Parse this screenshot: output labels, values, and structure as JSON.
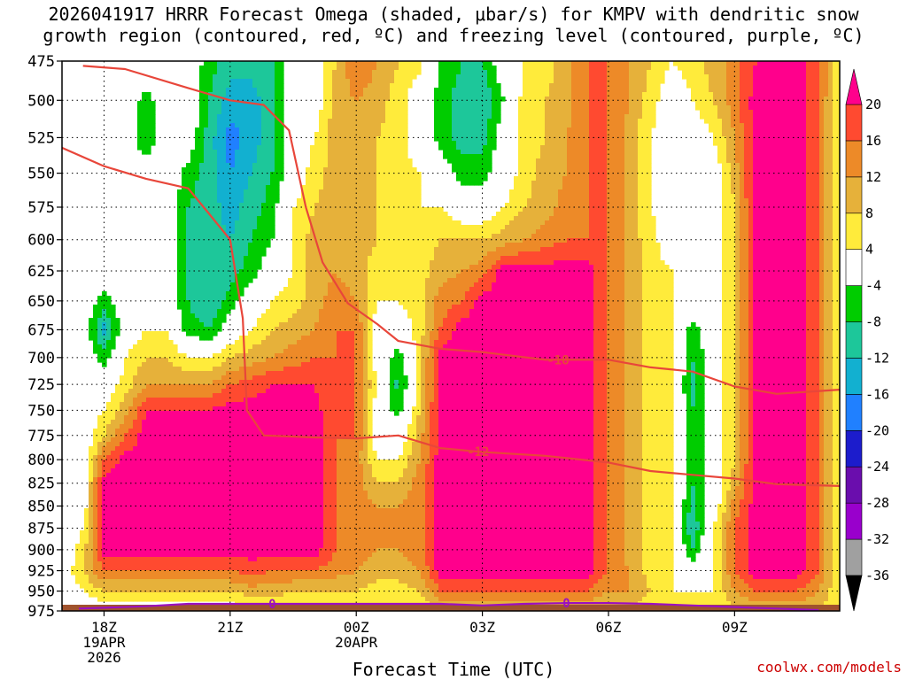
{
  "title_line1": "2026041917 HRRR Forecast Omega (shaded, μbar/s) for KMPV with dendritic snow",
  "title_line2": "growth region (contoured, red, ºC) and freezing level (contoured, purple, ºC)",
  "credit": "coolwx.com/models",
  "chart_data": {
    "type": "heatmap",
    "title": "2026041917 HRRR Forecast Omega (shaded, μbar/s) for KMPV with dendritic snow growth region (contoured, red, ºC) and freezing level (contoured, purple, ºC)",
    "xlabel": "Forecast Time (UTC)",
    "ylabel": "",
    "x_hours_range": [
      17,
      35.5
    ],
    "y_pressure_range": [
      975,
      475
    ],
    "y_ticks": [
      475,
      500,
      525,
      550,
      575,
      600,
      625,
      650,
      675,
      700,
      725,
      750,
      775,
      800,
      825,
      850,
      875,
      900,
      925,
      950,
      975
    ],
    "x_ticks": [
      {
        "hour": 18,
        "lines": [
          "18Z",
          "19APR",
          "2026"
        ]
      },
      {
        "hour": 21,
        "lines": [
          "21Z"
        ]
      },
      {
        "hour": 24,
        "lines": [
          "00Z",
          "20APR"
        ]
      },
      {
        "hour": 27,
        "lines": [
          "03Z"
        ]
      },
      {
        "hour": 30,
        "lines": [
          "06Z"
        ]
      },
      {
        "hour": 33,
        "lines": [
          "09Z"
        ]
      }
    ],
    "grid": true,
    "colorbar": {
      "levels": [
        -36,
        -32,
        -28,
        -24,
        -20,
        -16,
        -12,
        -8,
        -4,
        4,
        8,
        12,
        16,
        20
      ],
      "colors": [
        "#000000",
        "#a0a0a0",
        "#9900cc",
        "#6a0dad",
        "#1c1ccc",
        "#2080ff",
        "#12b0d0",
        "#1dc79a",
        "#00cc00",
        "#ffffff",
        "#ffeb3b",
        "#e6b13a",
        "#ed8a28",
        "#ff4a30",
        "#ff008c",
        "#ff008c"
      ]
    },
    "omega_columns": [
      {
        "hour": 17.0,
        "values": [
          0,
          0,
          0,
          0,
          0,
          0,
          0,
          0,
          0,
          0,
          0,
          0,
          0,
          0,
          0,
          0,
          0,
          0,
          0,
          0,
          0
        ]
      },
      {
        "hour": 17.5,
        "values": [
          0,
          0,
          0,
          0,
          0,
          0,
          0,
          0,
          0,
          0,
          0,
          0,
          0,
          0,
          0,
          0,
          4,
          6,
          8,
          4,
          0
        ]
      },
      {
        "hour": 18.0,
        "values": [
          4,
          0,
          0,
          0,
          0,
          0,
          0,
          -6,
          -14,
          -6,
          0,
          4,
          8,
          16,
          22,
          22,
          22,
          22,
          16,
          8,
          0
        ]
      },
      {
        "hour": 18.5,
        "values": [
          0,
          0,
          0,
          0,
          0,
          0,
          0,
          0,
          0,
          4,
          6,
          10,
          16,
          22,
          22,
          22,
          22,
          22,
          16,
          8,
          0
        ]
      },
      {
        "hour": 19.0,
        "values": [
          0,
          -6,
          -8,
          0,
          0,
          0,
          0,
          0,
          4,
          8,
          12,
          20,
          22,
          22,
          22,
          22,
          22,
          22,
          16,
          8,
          0
        ]
      },
      {
        "hour": 19.5,
        "values": [
          0,
          0,
          0,
          0,
          0,
          0,
          0,
          0,
          4,
          8,
          12,
          20,
          22,
          22,
          22,
          22,
          22,
          22,
          16,
          8,
          0
        ]
      },
      {
        "hour": 20.0,
        "values": [
          0,
          0,
          0,
          -6,
          -8,
          -8,
          -8,
          -8,
          -6,
          4,
          12,
          20,
          22,
          22,
          22,
          22,
          22,
          22,
          16,
          8,
          0
        ]
      },
      {
        "hour": 20.5,
        "values": [
          -6,
          -8,
          -10,
          -10,
          -10,
          -10,
          -12,
          -12,
          -8,
          4,
          12,
          20,
          22,
          22,
          22,
          22,
          22,
          22,
          16,
          8,
          0
        ]
      },
      {
        "hour": 21.0,
        "values": [
          -10,
          -14,
          -18,
          -16,
          -14,
          -12,
          -10,
          -6,
          0,
          8,
          16,
          22,
          22,
          22,
          22,
          22,
          22,
          22,
          16,
          8,
          0
        ]
      },
      {
        "hour": 21.5,
        "values": [
          -10,
          -14,
          -14,
          -12,
          -10,
          -8,
          -6,
          0,
          4,
          10,
          18,
          22,
          22,
          22,
          22,
          22,
          22,
          22,
          18,
          10,
          4
        ]
      },
      {
        "hour": 22.0,
        "values": [
          -8,
          -10,
          -10,
          -8,
          -6,
          -4,
          0,
          4,
          8,
          12,
          20,
          22,
          22,
          22,
          22,
          22,
          22,
          22,
          16,
          10,
          4
        ]
      },
      {
        "hour": 22.5,
        "values": [
          0,
          0,
          0,
          0,
          4,
          4,
          4,
          6,
          10,
          14,
          20,
          22,
          22,
          22,
          22,
          22,
          22,
          22,
          16,
          8,
          4
        ]
      },
      {
        "hour": 23.0,
        "values": [
          0,
          0,
          4,
          6,
          8,
          10,
          10,
          10,
          12,
          16,
          20,
          22,
          22,
          22,
          22,
          22,
          22,
          22,
          16,
          8,
          4
        ]
      },
      {
        "hour": 23.5,
        "values": [
          8,
          10,
          10,
          10,
          10,
          10,
          12,
          14,
          16,
          16,
          16,
          16,
          16,
          16,
          16,
          16,
          16,
          16,
          14,
          8,
          4
        ]
      },
      {
        "hour": 24.0,
        "values": [
          16,
          12,
          12,
          10,
          10,
          10,
          10,
          12,
          16,
          16,
          16,
          16,
          16,
          14,
          14,
          14,
          14,
          14,
          12,
          8,
          4
        ]
      },
      {
        "hour": 24.5,
        "values": [
          12,
          10,
          8,
          8,
          8,
          8,
          6,
          4,
          0,
          0,
          4,
          0,
          0,
          4,
          8,
          12,
          12,
          12,
          10,
          6,
          4
        ]
      },
      {
        "hour": 25.0,
        "values": [
          8,
          6,
          6,
          6,
          6,
          6,
          4,
          4,
          0,
          -6,
          -10,
          -6,
          0,
          4,
          8,
          12,
          12,
          12,
          10,
          6,
          4
        ]
      },
      {
        "hour": 25.5,
        "values": [
          6,
          0,
          0,
          4,
          4,
          6,
          6,
          6,
          6,
          6,
          6,
          8,
          10,
          12,
          14,
          14,
          14,
          14,
          12,
          8,
          4
        ]
      },
      {
        "hour": 26.0,
        "values": [
          -4,
          -6,
          -6,
          0,
          4,
          8,
          10,
          14,
          16,
          22,
          22,
          22,
          22,
          22,
          22,
          22,
          22,
          22,
          22,
          16,
          8
        ]
      },
      {
        "hour": 26.5,
        "values": [
          -8,
          -10,
          -10,
          -6,
          0,
          8,
          12,
          16,
          22,
          22,
          22,
          22,
          22,
          22,
          22,
          22,
          22,
          22,
          22,
          16,
          8
        ]
      },
      {
        "hour": 27.0,
        "values": [
          -8,
          -12,
          -10,
          -6,
          0,
          8,
          14,
          22,
          22,
          22,
          22,
          22,
          22,
          22,
          22,
          22,
          22,
          22,
          22,
          16,
          8
        ]
      },
      {
        "hour": 27.5,
        "values": [
          0,
          -4,
          0,
          0,
          4,
          10,
          22,
          22,
          22,
          22,
          22,
          22,
          22,
          22,
          22,
          22,
          22,
          22,
          22,
          16,
          8
        ]
      },
      {
        "hour": 28.0,
        "values": [
          4,
          6,
          6,
          6,
          8,
          12,
          22,
          22,
          22,
          22,
          22,
          22,
          22,
          22,
          22,
          22,
          22,
          22,
          22,
          16,
          8
        ]
      },
      {
        "hour": 28.5,
        "values": [
          6,
          8,
          8,
          10,
          10,
          14,
          22,
          22,
          22,
          22,
          22,
          22,
          22,
          22,
          22,
          22,
          22,
          22,
          22,
          16,
          8
        ]
      },
      {
        "hour": 29.0,
        "values": [
          10,
          10,
          12,
          12,
          14,
          16,
          22,
          22,
          22,
          22,
          22,
          22,
          22,
          22,
          22,
          22,
          22,
          22,
          22,
          16,
          8
        ]
      },
      {
        "hour": 29.5,
        "values": [
          16,
          16,
          16,
          16,
          16,
          16,
          22,
          22,
          22,
          22,
          22,
          22,
          22,
          22,
          22,
          22,
          22,
          22,
          22,
          16,
          8
        ]
      },
      {
        "hour": 30.0,
        "values": [
          16,
          16,
          16,
          16,
          16,
          16,
          16,
          16,
          16,
          16,
          16,
          16,
          16,
          16,
          16,
          16,
          16,
          16,
          16,
          12,
          8
        ]
      },
      {
        "hour": 30.5,
        "values": [
          12,
          12,
          10,
          10,
          10,
          10,
          10,
          10,
          10,
          10,
          10,
          10,
          10,
          10,
          10,
          10,
          10,
          10,
          12,
          12,
          8
        ]
      },
      {
        "hour": 31.0,
        "values": [
          8,
          6,
          4,
          4,
          4,
          6,
          6,
          6,
          6,
          6,
          6,
          6,
          6,
          6,
          6,
          6,
          6,
          6,
          6,
          8,
          4
        ]
      },
      {
        "hour": 31.5,
        "values": [
          4,
          0,
          0,
          0,
          0,
          0,
          4,
          4,
          4,
          4,
          4,
          4,
          4,
          4,
          4,
          4,
          4,
          4,
          4,
          4,
          4
        ]
      },
      {
        "hour": 32.0,
        "values": [
          6,
          4,
          0,
          0,
          0,
          0,
          0,
          0,
          -6,
          -8,
          -10,
          -8,
          -8,
          -8,
          -8,
          -10,
          -12,
          -8,
          0,
          4,
          4
        ]
      },
      {
        "hour": 32.5,
        "values": [
          10,
          8,
          4,
          0,
          0,
          0,
          0,
          0,
          0,
          0,
          0,
          0,
          0,
          0,
          0,
          0,
          4,
          4,
          4,
          4,
          4
        ]
      },
      {
        "hour": 33.0,
        "values": [
          14,
          14,
          12,
          10,
          8,
          8,
          8,
          8,
          8,
          8,
          8,
          8,
          8,
          8,
          10,
          14,
          16,
          16,
          16,
          12,
          8
        ]
      },
      {
        "hour": 33.5,
        "values": [
          20,
          22,
          22,
          22,
          22,
          22,
          22,
          22,
          22,
          22,
          22,
          22,
          22,
          22,
          22,
          22,
          22,
          22,
          22,
          16,
          8
        ]
      },
      {
        "hour": 34.0,
        "values": [
          22,
          22,
          22,
          22,
          22,
          22,
          22,
          22,
          22,
          22,
          22,
          22,
          22,
          22,
          22,
          22,
          22,
          22,
          22,
          16,
          8
        ]
      },
      {
        "hour": 34.5,
        "values": [
          22,
          22,
          22,
          22,
          22,
          22,
          22,
          22,
          22,
          22,
          22,
          22,
          22,
          22,
          22,
          22,
          22,
          22,
          22,
          16,
          8
        ]
      },
      {
        "hour": 35.0,
        "values": [
          18,
          16,
          16,
          16,
          16,
          16,
          16,
          16,
          16,
          16,
          16,
          16,
          16,
          16,
          16,
          16,
          16,
          16,
          16,
          12,
          8
        ]
      },
      {
        "hour": 35.5,
        "values": [
          4,
          4,
          4,
          4,
          4,
          4,
          4,
          4,
          4,
          4,
          4,
          4,
          4,
          4,
          4,
          4,
          4,
          4,
          4,
          4,
          4
        ]
      }
    ],
    "dgz_contours": [
      {
        "label": "-18",
        "points": [
          [
            17.5,
            478
          ],
          [
            18.5,
            480
          ],
          [
            20.0,
            492
          ],
          [
            21.0,
            500
          ],
          [
            21.8,
            503
          ],
          [
            22.4,
            520
          ],
          [
            22.8,
            575
          ],
          [
            23.2,
            618
          ],
          [
            23.8,
            652
          ],
          [
            24.5,
            670
          ],
          [
            25.0,
            685
          ],
          [
            26.0,
            692
          ],
          [
            27.0,
            695
          ],
          [
            28.5,
            702
          ],
          [
            30.0,
            702
          ],
          [
            31.0,
            709
          ],
          [
            32.0,
            713
          ],
          [
            33.0,
            727
          ],
          [
            34.0,
            734
          ],
          [
            35.5,
            730
          ]
        ]
      },
      {
        "label": "-12",
        "points": [
          [
            17.0,
            532
          ],
          [
            18.0,
            545
          ],
          [
            19.0,
            554
          ],
          [
            20.0,
            561
          ],
          [
            20.5,
            580
          ],
          [
            21.0,
            600
          ],
          [
            21.3,
            665
          ],
          [
            21.4,
            750
          ],
          [
            21.8,
            775
          ],
          [
            23.0,
            777
          ],
          [
            24.0,
            778
          ],
          [
            25.0,
            775
          ],
          [
            26.0,
            788
          ],
          [
            27.0,
            792
          ],
          [
            28.5,
            796
          ],
          [
            30.0,
            803
          ],
          [
            31.0,
            812
          ],
          [
            32.0,
            816
          ],
          [
            33.0,
            820
          ],
          [
            34.0,
            826
          ],
          [
            35.5,
            828
          ]
        ]
      }
    ],
    "dgz_label_positions": [
      {
        "label": "-18",
        "hour": 28.8
      },
      {
        "label": "-12",
        "hour": 26.9
      }
    ],
    "freezing_level": {
      "label": "0",
      "label_hours": [
        22.0,
        29.0
      ],
      "points": [
        [
          17.4,
          972
        ],
        [
          18.0,
          971
        ],
        [
          19.0,
          969
        ],
        [
          20.0,
          966
        ],
        [
          21.0,
          966
        ],
        [
          22.0,
          966
        ],
        [
          23.0,
          966
        ],
        [
          24.0,
          966
        ],
        [
          25.0,
          966
        ],
        [
          26.0,
          966
        ],
        [
          27.0,
          968
        ],
        [
          28.0,
          966
        ],
        [
          29.0,
          965
        ],
        [
          30.0,
          965
        ],
        [
          31.0,
          966
        ],
        [
          32.0,
          968
        ],
        [
          33.0,
          970
        ],
        [
          34.0,
          972
        ],
        [
          35.0,
          974
        ]
      ]
    },
    "ground_color": "#a0522d",
    "dgz_color": "#e8463a",
    "freezing_color": "#9b10c0"
  }
}
